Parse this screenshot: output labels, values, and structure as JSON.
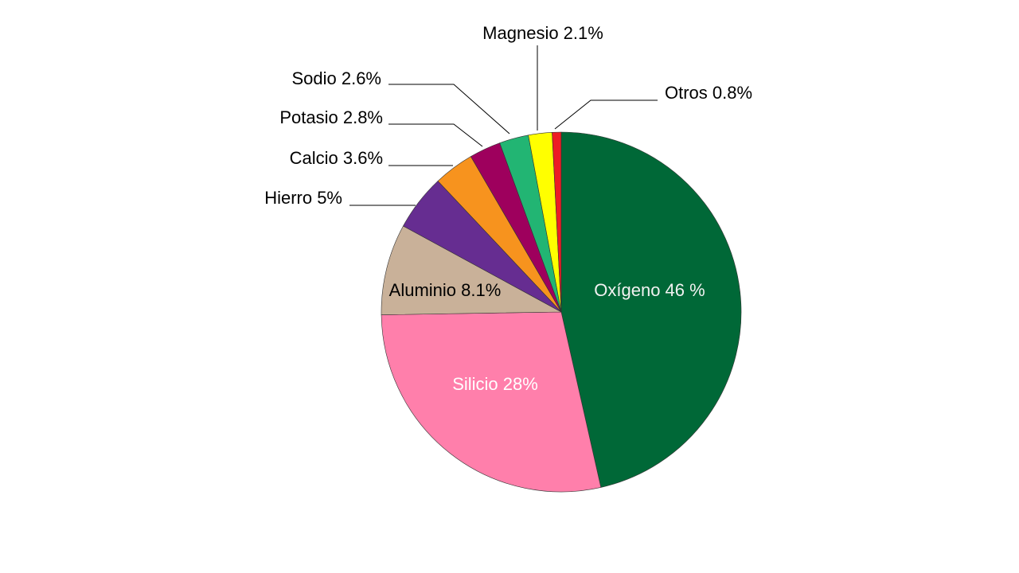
{
  "chart_data": {
    "type": "pie",
    "title": "",
    "start_angle_deg": 0,
    "direction": "clockwise",
    "slices": [
      {
        "label": "Oxígeno 46 %",
        "value": 46.0,
        "color": "#006837",
        "label_color": "#f2f2f2",
        "label_style": "inside"
      },
      {
        "label": "Silicio 28%",
        "value": 28.0,
        "color": "#ff7fab",
        "label_color": "#ffffff",
        "label_style": "inside"
      },
      {
        "label": "Aluminio 8.1%",
        "value": 8.1,
        "color": "#c9b199",
        "label_color": "#000000",
        "label_style": "inside"
      },
      {
        "label": "Hierro 5%",
        "value": 5.0,
        "color": "#662d91",
        "label_color": "#000000",
        "label_style": "callout"
      },
      {
        "label": "Calcio 3.6%",
        "value": 3.6,
        "color": "#f7931e",
        "label_color": "#000000",
        "label_style": "callout"
      },
      {
        "label": "Potasio 2.8%",
        "value": 2.8,
        "color": "#9e005d",
        "label_color": "#000000",
        "label_style": "callout"
      },
      {
        "label": "Sodio 2.6%",
        "value": 2.6,
        "color": "#22b573",
        "label_color": "#000000",
        "label_style": "callout"
      },
      {
        "label": "Magnesio 2.1%",
        "value": 2.1,
        "color": "#ffff00",
        "label_color": "#000000",
        "label_style": "callout"
      },
      {
        "label": "Otros 0.8%",
        "value": 0.8,
        "color": "#ed1c24",
        "label_color": "#000000",
        "label_style": "callout"
      }
    ]
  }
}
